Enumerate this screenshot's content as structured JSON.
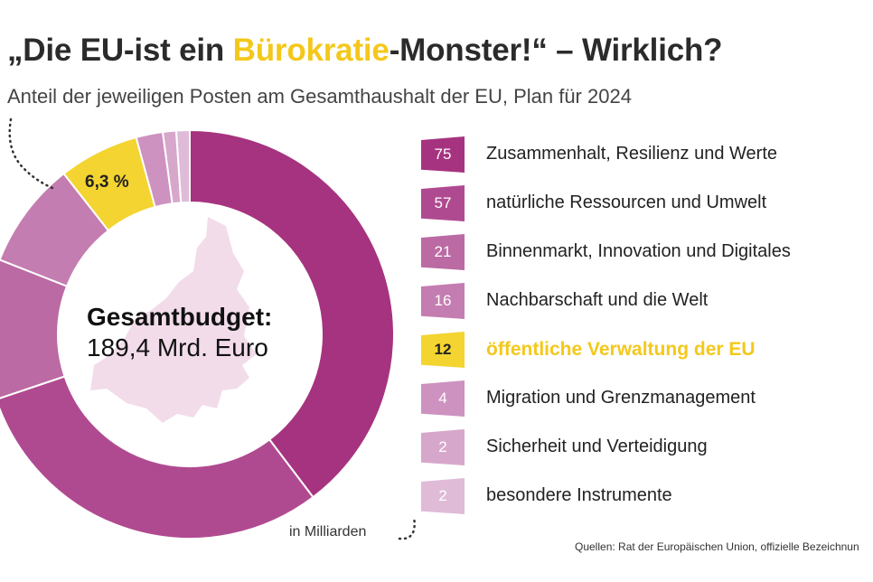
{
  "header": {
    "title_part1": "„Die EU-ist ein ",
    "title_highlight": "Bürokratie",
    "title_part2": "-Monster!“ – Wirklich?",
    "subtitle": "Anteil der jeweiligen Posten am Gesamthaushalt der EU, Plan für 2024"
  },
  "center": {
    "line1": "Gesamtbudget:",
    "line2": "189,4 Mrd. Euro"
  },
  "highlight_percent": "6,3 %",
  "unit_note": "in Milliarden",
  "source": "Quellen: Rat der Europäischen Union, offizielle Bezeichnun",
  "colors": {
    "c1": "#a6337f",
    "c2": "#b04a90",
    "c3": "#bb6aa3",
    "c4": "#c47db0",
    "c5": "#f4d430",
    "c6": "#cd92c0",
    "c7": "#d7a7cb",
    "c8": "#e0bbd8",
    "map": "#f2dcea",
    "highlight_text": "#f4c81b"
  },
  "chart_data": {
    "type": "pie",
    "title": "„Die EU-ist ein Bürokratie-Monster!“ – Wirklich?",
    "subtitle": "Anteil der jeweiligen Posten am Gesamthaushalt der EU, Plan für 2024",
    "unit": "Mrd. Euro",
    "total": 189.4,
    "categories": [
      "Zusammenhalt, Resilienz und Werte",
      "natürliche Ressourcen und Umwelt",
      "Binnenmarkt, Innovation und Digitales",
      "Nachbarschaft und die Welt",
      "öffentliche Verwaltung der EU",
      "Migration und Grenzmanagement",
      "Sicherheit und Verteidigung",
      "besondere Instrumente"
    ],
    "values": [
      75,
      57,
      21,
      16,
      12,
      4,
      2,
      2
    ],
    "value_labels": [
      "75",
      "57",
      "21",
      "16",
      "12",
      "4",
      "2",
      "2"
    ],
    "annotations": [
      "6,3 %"
    ]
  }
}
